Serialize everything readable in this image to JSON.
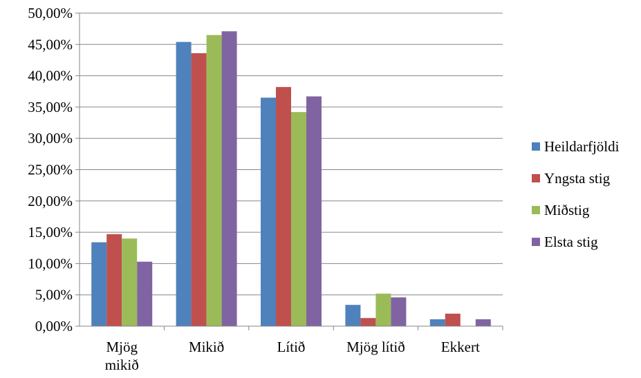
{
  "chart_data": {
    "type": "bar",
    "title": "",
    "xlabel": "",
    "ylabel": "",
    "ylim": [
      0,
      0.5
    ],
    "yticks": [
      "0,00%",
      "5,00%",
      "10,00%",
      "15,00%",
      "20,00%",
      "25,00%",
      "30,00%",
      "35,00%",
      "40,00%",
      "45,00%",
      "50,00%"
    ],
    "categories": [
      [
        "Mjög",
        "mikið"
      ],
      [
        "Mikið"
      ],
      [
        "Lítið"
      ],
      [
        "Mjög lítið"
      ],
      [
        "Ekkert"
      ]
    ],
    "series": [
      {
        "name": "Heildarfjöldi",
        "color": "#4F81BD",
        "values": [
          0.134,
          0.454,
          0.365,
          0.034,
          0.011
        ]
      },
      {
        "name": "Yngsta stig",
        "color": "#C0504D",
        "values": [
          0.147,
          0.436,
          0.382,
          0.013,
          0.02
        ]
      },
      {
        "name": "Miðstig",
        "color": "#9BBB59",
        "values": [
          0.14,
          0.465,
          0.342,
          0.052,
          0.0
        ]
      },
      {
        "name": "Elsta stig",
        "color": "#8064A2",
        "values": [
          0.103,
          0.471,
          0.367,
          0.046,
          0.011
        ]
      }
    ],
    "grid": true,
    "legend_position": "right"
  }
}
